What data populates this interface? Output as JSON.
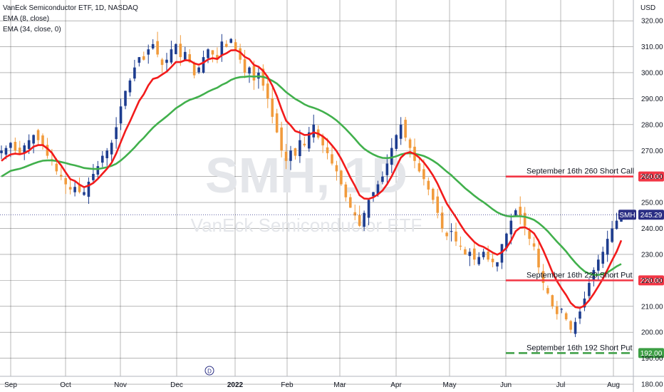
{
  "legend": {
    "symbol": "VanEck Semiconductor ETF, 1D, NASDAQ",
    "ema_fast": "EMA (8, close)",
    "ema_slow": "EMA (34, close, 0)"
  },
  "watermark": {
    "ticker": "SMH, 1D",
    "name": "VanEck Semiconductor ETF"
  },
  "currency_label": "USD",
  "price_badge": {
    "symbol": "SMH",
    "value": "245.29",
    "price": 245.29,
    "color": "#2a2e84"
  },
  "events": [
    {
      "label": "D",
      "x": 294
    }
  ],
  "colors": {
    "up": "#1e3d8f",
    "down": "#f19b3c",
    "ema_fast": "#f21b1b",
    "ema_slow": "#41b04c",
    "call_line": "#f23645",
    "put_line": "#f23645",
    "put2_line": "#3c9e44"
  },
  "chart_data": {
    "type": "candlestick",
    "title": "VanEck Semiconductor ETF, 1D, NASDAQ",
    "ylim": [
      177,
      328
    ],
    "y_ticks": [
      180,
      190,
      200,
      210,
      220,
      230,
      240,
      250,
      260,
      270,
      280,
      290,
      300,
      310,
      320
    ],
    "x_ticks": [
      "Sep",
      "Oct",
      "Nov",
      "Dec",
      "2022",
      "Feb",
      "Mar",
      "Apr",
      "May",
      "Jun",
      "Jul",
      "Aug"
    ],
    "x_tick_pos": [
      15,
      92,
      169,
      248,
      330,
      403,
      477,
      556,
      631,
      710,
      787,
      861
    ],
    "ohlc_closes": [
      270,
      271,
      273,
      270,
      269,
      272,
      274,
      276,
      274,
      272,
      268,
      266,
      262,
      260,
      257,
      255,
      256,
      254,
      254,
      258,
      261,
      264,
      268,
      270,
      273,
      279,
      287,
      293,
      297,
      302,
      306,
      305,
      309,
      311,
      307,
      303,
      305,
      309,
      311,
      306,
      308,
      304,
      299,
      302,
      306,
      309,
      307,
      305,
      312,
      310,
      313,
      309,
      305,
      300,
      302,
      297,
      300,
      295,
      290,
      283,
      277,
      270,
      266,
      270,
      268,
      274,
      272,
      277,
      280,
      275,
      272,
      269,
      265,
      262,
      257,
      252,
      248,
      245,
      241,
      246,
      251,
      254,
      257,
      260,
      265,
      271,
      276,
      280,
      275,
      271,
      266,
      262,
      259,
      255,
      251,
      246,
      240,
      237,
      239,
      235,
      233,
      230,
      231,
      228,
      229,
      231,
      228,
      227,
      227,
      234,
      238,
      243,
      247,
      245,
      241,
      236,
      233,
      225,
      219,
      215,
      210,
      207,
      209,
      205,
      201,
      204,
      208,
      213,
      219,
      224,
      228,
      231,
      236,
      240,
      243,
      245.29
    ],
    "ema8": [
      266,
      267.5,
      268.5,
      268.8,
      268.6,
      269.0,
      270.0,
      271.5,
      272.1,
      272.1,
      270.8,
      269.1,
      266.4,
      264.3,
      261.6,
      259.0,
      258.3,
      256.9,
      255.9,
      256.5,
      257.5,
      259.1,
      261.1,
      263.0,
      265.3,
      268.9,
      273.3,
      277.6,
      281.2,
      285.2,
      289.1,
      291.7,
      295.1,
      297.6,
      298.1,
      299.3,
      300.4,
      302.2,
      304.1,
      304.1,
      304.8,
      304.7,
      303.6,
      303.1,
      303.9,
      305.1,
      305.6,
      305.3,
      306.7,
      307.5,
      308.6,
      308.7,
      307.9,
      306.1,
      305.2,
      303.0,
      302.3,
      300.7,
      298.3,
      295.0,
      290.9,
      286.0,
      281.5,
      279.7,
      277.5,
      276.9,
      276.0,
      276.1,
      277.0,
      276.5,
      275.5,
      274.0,
      272.0,
      269.8,
      266.8,
      263.3,
      259.6,
      256.4,
      252.8,
      251.5,
      251.4,
      252.0,
      253.1,
      254.6,
      257.0,
      260.1,
      263.7,
      267.3,
      268.9,
      269.4,
      268.7,
      267.3,
      265.4,
      263.1,
      260.4,
      257.2,
      253.3,
      249.6,
      246.9,
      244.3,
      241.4,
      238.7,
      236.7,
      234.8,
      233.5,
      232.9,
      231.8,
      230.7,
      229.9,
      230.8,
      232.5,
      235.3,
      238.9,
      240.3,
      240.5,
      239.5,
      238.1,
      235.2,
      231.6,
      227.5,
      223.2,
      219.7,
      216.9,
      214.3,
      211.3,
      209.7,
      209.4,
      210.3,
      212.3,
      214.8,
      217.7,
      220.6,
      224.1,
      227.7,
      231.1,
      235.4
    ],
    "ema34": [
      260,
      261.1,
      262.2,
      262.6,
      263.0,
      263.6,
      264.3,
      265.0,
      265.6,
      266.1,
      266.2,
      266.2,
      266.0,
      265.6,
      265.2,
      264.7,
      264.3,
      263.8,
      263.3,
      263.1,
      262.9,
      262.9,
      263.2,
      263.6,
      264.1,
      264.9,
      266.2,
      267.7,
      269.4,
      271.2,
      273.2,
      274.9,
      276.9,
      278.8,
      280.4,
      281.8,
      283.2,
      284.7,
      286.3,
      287.4,
      288.6,
      289.5,
      290.1,
      290.8,
      291.7,
      292.7,
      293.5,
      294.2,
      295.3,
      296.1,
      297.2,
      297.9,
      298.3,
      298.4,
      298.6,
      298.5,
      298.6,
      298.4,
      297.8,
      296.9,
      295.8,
      294.2,
      292.5,
      291.2,
      289.9,
      288.9,
      287.8,
      287.0,
      286.5,
      285.8,
      285.0,
      284.0,
      282.9,
      281.6,
      280.0,
      278.3,
      276.4,
      274.5,
      272.4,
      270.7,
      269.5,
      268.5,
      267.7,
      267.2,
      267.1,
      267.3,
      267.8,
      268.5,
      268.9,
      269.0,
      268.8,
      268.4,
      267.9,
      267.1,
      266.1,
      264.9,
      263.4,
      261.9,
      260.5,
      258.8,
      257.2,
      255.5,
      254.1,
      252.6,
      251.3,
      250.1,
      248.8,
      247.4,
      246.2,
      245.4,
      244.8,
      244.6,
      244.7,
      244.7,
      244.5,
      244.0,
      243.3,
      242.1,
      240.6,
      238.9,
      236.9,
      234.9,
      233.1,
      231.1,
      228.9,
      226.8,
      225.0,
      223.5,
      222.6,
      222.1,
      222.1,
      222.4,
      223.1,
      224.2,
      225.4,
      226.3
    ],
    "levels": [
      {
        "label": "September 16th 260 Short Call",
        "value": 260,
        "tag": "260.00",
        "style": "solid",
        "color": "#f23645"
      },
      {
        "label": "September 16th 220 Short Put",
        "value": 220,
        "tag": "220.00",
        "style": "solid",
        "color": "#f23645"
      },
      {
        "label": "September 16th 192 Short Put",
        "value": 192,
        "tag": "192.00",
        "style": "dashed",
        "color": "#3c9e44"
      }
    ]
  }
}
